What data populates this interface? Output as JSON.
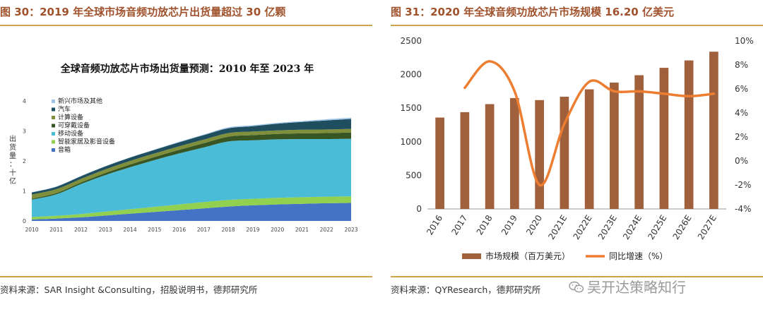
{
  "left": {
    "fig_title": "图 30：2019 年全球市场音频功放芯片出货量超过 30 亿颗",
    "source": "资料来源：SAR Insight &Consulting，招股说明书，德邦研究所",
    "chart_data": {
      "type": "area",
      "title": "全球音频功放芯片市场出货量预测：2010 年至 2023 年",
      "ylabel": "出货量：十亿",
      "x": [
        "2010",
        "2011",
        "2012",
        "2013",
        "2014",
        "2015",
        "2016",
        "2017",
        "2018",
        "2019",
        "2020",
        "2021",
        "2022",
        "2023"
      ],
      "ylim": [
        0,
        4
      ],
      "yticks": [
        0,
        1,
        2,
        3,
        4
      ],
      "legend_position": "upper-left",
      "series": [
        {
          "name": "音箱",
          "color": "#4472c4",
          "values": [
            0.05,
            0.08,
            0.12,
            0.18,
            0.24,
            0.3,
            0.36,
            0.42,
            0.48,
            0.52,
            0.55,
            0.57,
            0.59,
            0.6
          ]
        },
        {
          "name": "智能家居及影音设备",
          "color": "#92d050",
          "values": [
            0.08,
            0.09,
            0.11,
            0.13,
            0.15,
            0.17,
            0.19,
            0.21,
            0.22,
            0.22,
            0.22,
            0.22,
            0.22,
            0.22
          ]
        },
        {
          "name": "移动设备",
          "color": "#4bbcd8",
          "values": [
            0.58,
            0.72,
            1.0,
            1.22,
            1.4,
            1.56,
            1.7,
            1.82,
            1.95,
            1.95,
            1.95,
            1.94,
            1.92,
            1.92
          ]
        },
        {
          "name": "可穿戴设备",
          "color": "#375623",
          "values": [
            0.03,
            0.04,
            0.05,
            0.07,
            0.09,
            0.1,
            0.12,
            0.14,
            0.16,
            0.17,
            0.18,
            0.19,
            0.2,
            0.21
          ]
        },
        {
          "name": "计算设备",
          "color": "#7f8f3b",
          "values": [
            0.14,
            0.13,
            0.12,
            0.12,
            0.12,
            0.12,
            0.12,
            0.12,
            0.12,
            0.12,
            0.12,
            0.12,
            0.12,
            0.12
          ]
        },
        {
          "name": "汽车",
          "color": "#1f4e5f",
          "values": [
            0.07,
            0.08,
            0.09,
            0.1,
            0.11,
            0.12,
            0.13,
            0.15,
            0.16,
            0.18,
            0.22,
            0.26,
            0.3,
            0.33
          ]
        },
        {
          "name": "新兴市场及其他",
          "color": "#9dc3e6",
          "values": [
            0.01,
            0.01,
            0.01,
            0.01,
            0.01,
            0.01,
            0.02,
            0.02,
            0.03,
            0.03,
            0.03,
            0.03,
            0.04,
            0.04
          ]
        }
      ]
    }
  },
  "right": {
    "fig_title": "图 31：2020 年全球音频功放芯片市场规模 16.20 亿美元",
    "source": "资料来源：QYResearch，德邦研究所",
    "chart_data": {
      "type": "bar",
      "categories": [
        "2016",
        "2017",
        "2018",
        "2019",
        "2020",
        "2021E",
        "2022E",
        "2023E",
        "2024E",
        "2025E",
        "2026E",
        "2027E"
      ],
      "ylim": [
        0,
        2500
      ],
      "yticks": [
        0,
        500,
        1000,
        1500,
        2000,
        2500
      ],
      "y2lim": [
        -4,
        10
      ],
      "y2ticks": [
        "-4%",
        "-2%",
        "0%",
        "2%",
        "4%",
        "6%",
        "8%",
        "10%"
      ],
      "legend_position": "bottom",
      "series": [
        {
          "name": "市场规模（百万美元）",
          "type": "bar",
          "axis": "left",
          "color": "#a0603c",
          "values": [
            1360,
            1440,
            1560,
            1650,
            1620,
            1670,
            1780,
            1880,
            1990,
            2100,
            2210,
            2340
          ]
        },
        {
          "name": "同比增速（%）",
          "type": "line",
          "axis": "right",
          "color": "#ed7d31",
          "values": [
            null,
            6.1,
            8.3,
            5.8,
            -2.0,
            3.1,
            6.6,
            5.8,
            5.8,
            5.6,
            5.4,
            5.6
          ]
        }
      ]
    }
  },
  "watermark": {
    "text": "吴开达策略知行",
    "logo_icon": "wechat-icon"
  }
}
